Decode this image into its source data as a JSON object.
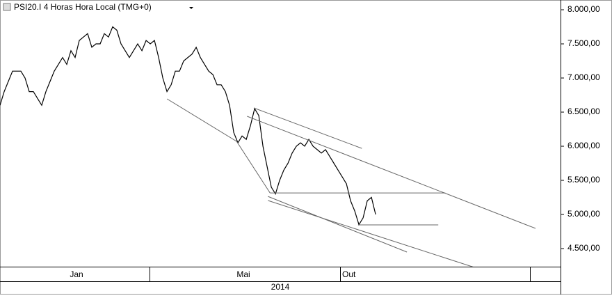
{
  "chart_data": {
    "type": "line",
    "title": "PSI20.I 4 Horas Hora Local (TMG+0)",
    "values": [
      6600,
      6800,
      6950,
      7100,
      7100,
      7100,
      7000,
      6800,
      6800,
      6700,
      6600,
      6800,
      6950,
      7100,
      7200,
      7300,
      7200,
      7400,
      7300,
      7550,
      7600,
      7650,
      7450,
      7500,
      7500,
      7650,
      7600,
      7750,
      7700,
      7500,
      7400,
      7300,
      7400,
      7500,
      7400,
      7550,
      7500,
      7550,
      7300,
      7000,
      6800,
      6900,
      7100,
      7100,
      7250,
      7300,
      7350,
      7450,
      7300,
      7200,
      7100,
      7050,
      6900,
      6900,
      6800,
      6600,
      6200,
      6050,
      6150,
      6100,
      6300,
      6550,
      6450,
      6000,
      5700,
      5400,
      5300,
      5500,
      5650,
      5750,
      5900,
      6000,
      6050,
      6000,
      6100,
      6000,
      5950,
      5900,
      5950,
      5850,
      5750,
      5650,
      5550,
      5450,
      5200,
      5050,
      4850,
      4950,
      5200,
      5250,
      5000
    ],
    "color": "#000000",
    "xlim": [
      0,
      134.3
    ],
    "ylim": [
      4235,
      8143
    ],
    "yticks": [
      {
        "value": 8000,
        "label": "8.000,00"
      },
      {
        "value": 7500,
        "label": "7.500,00"
      },
      {
        "value": 7000,
        "label": "7.000,00"
      },
      {
        "value": 6500,
        "label": "6.500,00"
      },
      {
        "value": 6000,
        "label": "6.000,00"
      },
      {
        "value": 5500,
        "label": "5.500,00"
      },
      {
        "value": 5000,
        "label": "5.000,00"
      },
      {
        "value": 4500,
        "label": "4.500,00"
      }
    ],
    "months": [
      "Jan",
      "Mai",
      "Out"
    ],
    "year": "2014",
    "trend_lines": [
      {
        "x": [
          40,
          56.7,
          64.7
        ],
        "y": [
          6694,
          6071,
          5316
        ]
      },
      {
        "x": [
          64.7,
          106.7
        ],
        "y": [
          5316,
          5316
        ]
      },
      {
        "x": [
          60.8,
          86.7
        ],
        "y": [
          6561,
          5969
        ]
      },
      {
        "x": [
          59.2,
          128.3
        ],
        "y": [
          6439,
          4796
        ]
      },
      {
        "x": [
          64.2,
          97.5
        ],
        "y": [
          5265,
          4449
        ]
      },
      {
        "x": [
          64.2,
          114.2
        ],
        "y": [
          5204,
          4214
        ]
      },
      {
        "x": [
          85.8,
          105
        ],
        "y": [
          4847,
          4847
        ]
      }
    ]
  }
}
